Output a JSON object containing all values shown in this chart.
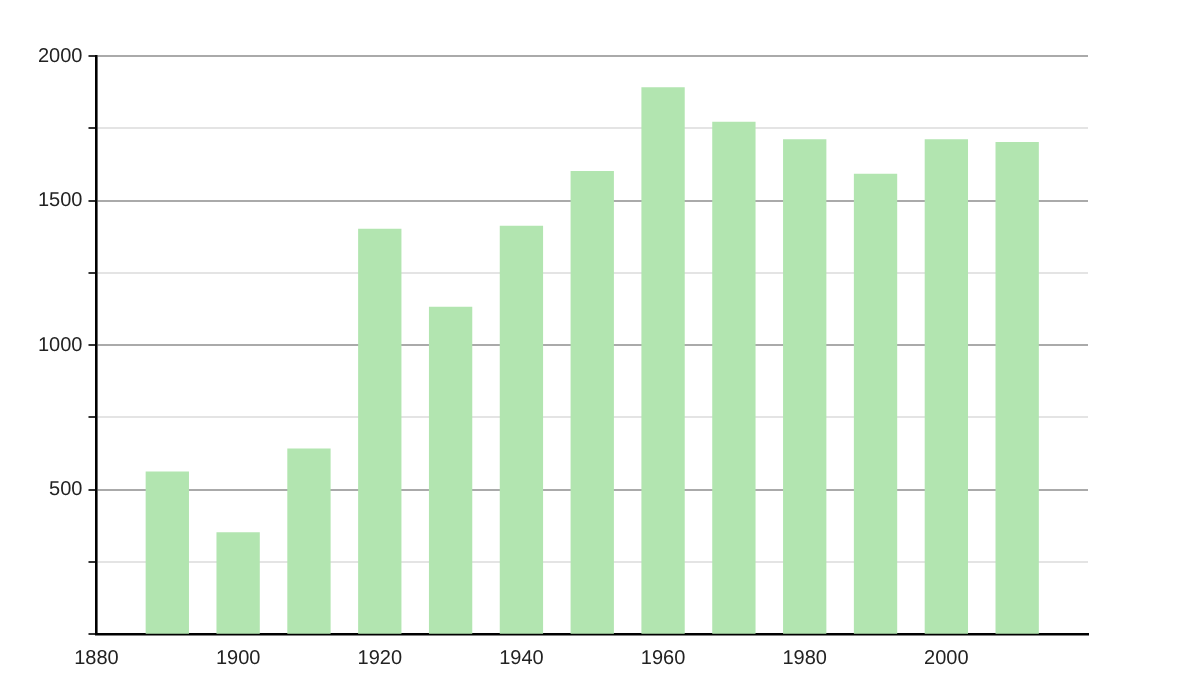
{
  "chart_data": {
    "type": "bar",
    "x": [
      1890,
      1900,
      1910,
      1920,
      1930,
      1940,
      1950,
      1960,
      1970,
      1980,
      1990,
      2000,
      2010
    ],
    "values": [
      560,
      350,
      640,
      1400,
      1130,
      1410,
      1600,
      1890,
      1770,
      1710,
      1590,
      1710,
      1700
    ],
    "color": "#b2e5b0",
    "xlim": [
      1880,
      2020
    ],
    "xticks": [
      1880,
      1900,
      1920,
      1940,
      1960,
      1980,
      2000
    ],
    "ylim": [
      0,
      2000
    ],
    "yticks": [
      {
        "value": 0,
        "label": null
      },
      {
        "value": 250,
        "label": null
      },
      500,
      {
        "value": 750,
        "label": null
      },
      1000,
      {
        "value": 1250,
        "label": null
      },
      1500,
      {
        "value": 1750,
        "label": null
      },
      2000
    ],
    "grid": "y",
    "legend": false
  }
}
